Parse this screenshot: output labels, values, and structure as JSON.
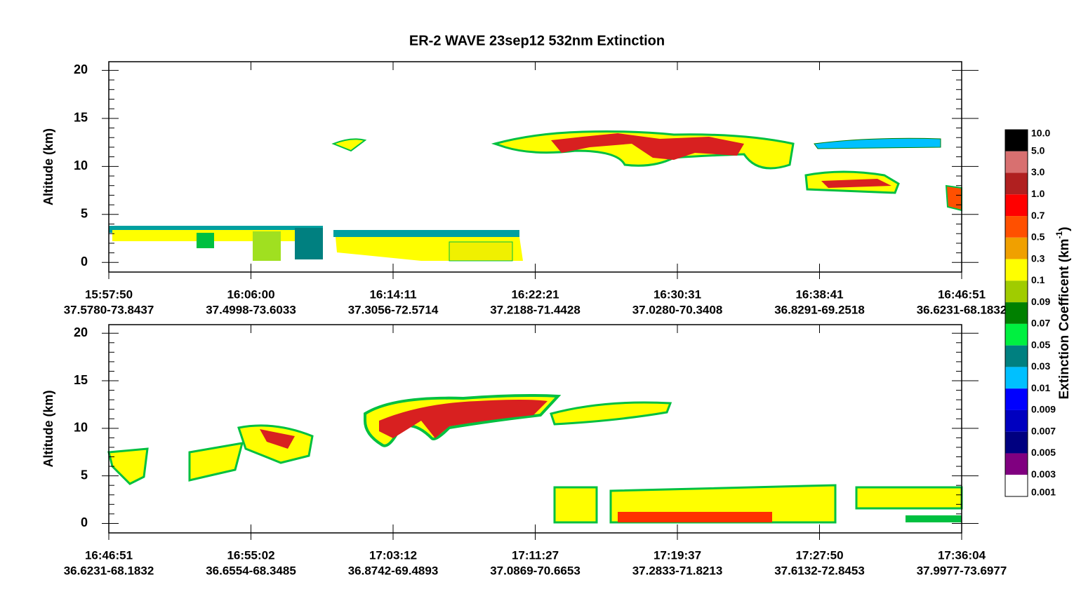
{
  "title": "ER-2  WAVE  23sep12  532nm Extinction",
  "chart_data": [
    {
      "type": "curtain",
      "y_label": "Altitude (km)",
      "ylim": [
        -1,
        20.9
      ],
      "yticks": [
        0,
        5,
        10,
        15,
        20
      ],
      "categories": [
        "15:57:50",
        "16:06:00",
        "16:14:11",
        "16:22:21",
        "16:30:31",
        "16:38:41",
        "16:46:51"
      ],
      "locations": [
        "37.5780-73.8437",
        "37.4998-73.6033",
        "37.3056-72.5714",
        "37.2188-71.4428",
        "37.0280-70.3408",
        "36.8291-69.2518",
        "36.6231-68.1832"
      ]
    },
    {
      "type": "curtain",
      "y_label": "Altitude (km)",
      "ylim": [
        -1,
        20.9
      ],
      "yticks": [
        0,
        5,
        10,
        15,
        20
      ],
      "categories": [
        "16:46:51",
        "16:55:02",
        "17:03:12",
        "17:11:27",
        "17:19:37",
        "17:27:50",
        "17:36:04"
      ],
      "locations": [
        "36.6231-68.1832",
        "36.6554-68.3485",
        "36.8742-69.4893",
        "37.0869-70.6653",
        "37.2833-71.8213",
        "37.6132-72.8453",
        "37.9977-73.6977"
      ]
    }
  ],
  "colorbar": {
    "label": "Extinction Coefficent (km",
    "label_exp": "-1",
    "label_end": ")",
    "colors": [
      "#000000",
      "#d87070",
      "#b02020",
      "#ff0000",
      "#ff5000",
      "#f0a000",
      "#ffff00",
      "#a0cc00",
      "#008000",
      "#00f040",
      "#008080",
      "#00c0ff",
      "#0000ff",
      "#0000c0",
      "#000080",
      "#800080",
      "#ffffff"
    ],
    "levels": [
      {
        "value": 10,
        "label": "10.0"
      },
      {
        "value": 5,
        "label": "5.0"
      },
      {
        "value": 3,
        "label": "3.0"
      },
      {
        "value": 1,
        "label": "1.0"
      },
      0.7,
      0.5,
      0.3,
      0.1,
      0.09,
      0.07,
      0.05,
      0.03,
      0.01,
      0.009,
      0.007,
      0.005,
      0.003,
      0.001
    ]
  }
}
